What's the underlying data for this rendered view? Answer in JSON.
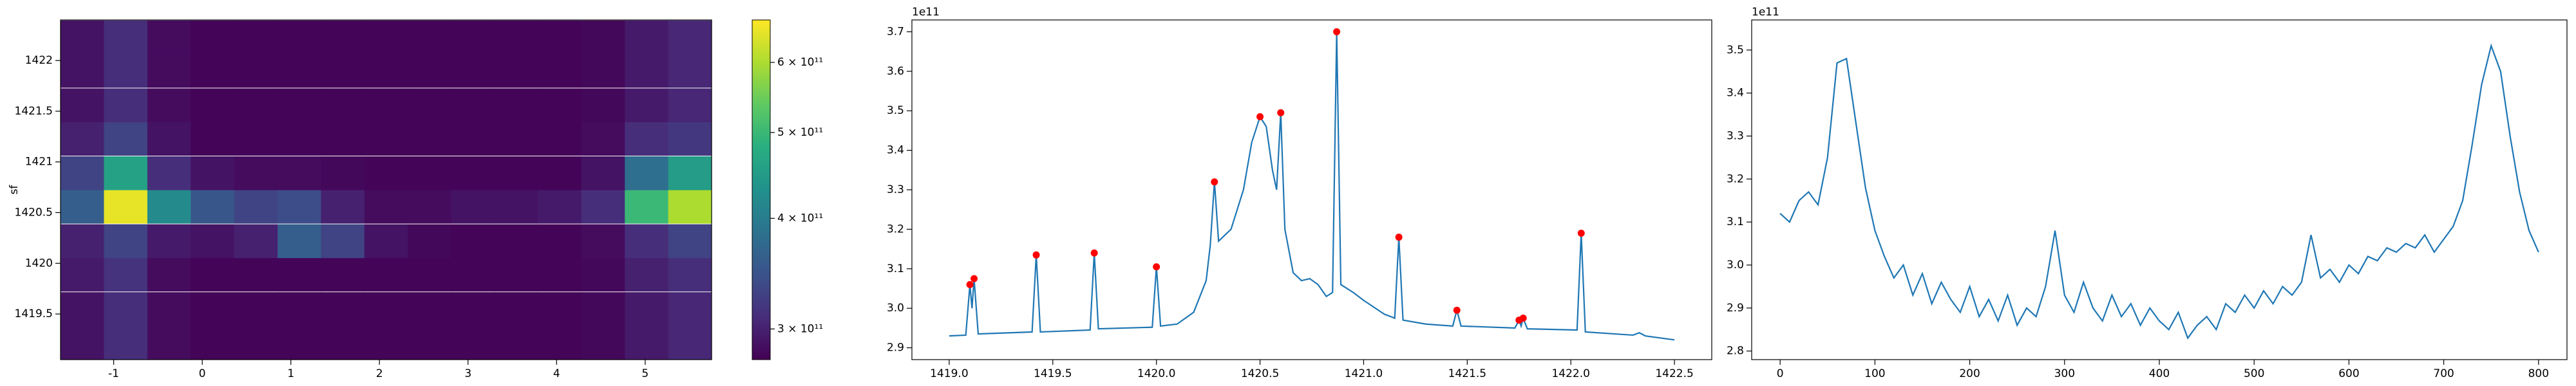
{
  "chart_data": [
    {
      "type": "heatmap",
      "ylabel": "sf",
      "x": [
        -1.355,
        -0.865,
        -0.375,
        0.115,
        0.605,
        1.095,
        1.585,
        2.075,
        2.565,
        3.055,
        3.545,
        4.035,
        4.525,
        5.015,
        5.505
      ],
      "y": [
        1419.22,
        1419.55,
        1419.89,
        1420.22,
        1420.56,
        1420.89,
        1421.23,
        1421.56,
        1421.9,
        1422.23
      ],
      "z": [
        [
          290000000000.0,
          310000000000.0,
          285000000000.0,
          280000000000.0,
          280000000000.0,
          280000000000.0,
          280000000000.0,
          280000000000.0,
          280000000000.0,
          280000000000.0,
          280000000000.0,
          280000000000.0,
          282000000000.0,
          295000000000.0,
          305000000000.0
        ],
        [
          290000000000.0,
          310000000000.0,
          285000000000.0,
          280000000000.0,
          280000000000.0,
          280000000000.0,
          280000000000.0,
          280000000000.0,
          280000000000.0,
          280000000000.0,
          280000000000.0,
          280000000000.0,
          282000000000.0,
          295000000000.0,
          305000000000.0
        ],
        [
          295000000000.0,
          315000000000.0,
          285000000000.0,
          280000000000.0,
          280000000000.0,
          280000000000.0,
          280000000000.0,
          280000000000.0,
          280000000000.0,
          280000000000.0,
          280000000000.0,
          280000000000.0,
          282000000000.0,
          300000000000.0,
          310000000000.0
        ],
        [
          300000000000.0,
          330000000000.0,
          295000000000.0,
          290000000000.0,
          300000000000.0,
          360000000000.0,
          330000000000.0,
          290000000000.0,
          282000000000.0,
          280000000000.0,
          280000000000.0,
          280000000000.0,
          285000000000.0,
          310000000000.0,
          330000000000.0
        ],
        [
          360000000000.0,
          650000000000.0,
          420000000000.0,
          350000000000.0,
          330000000000.0,
          340000000000.0,
          300000000000.0,
          285000000000.0,
          285000000000.0,
          290000000000.0,
          290000000000.0,
          295000000000.0,
          310000000000.0,
          500000000000.0,
          600000000000.0
        ],
        [
          330000000000.0,
          460000000000.0,
          310000000000.0,
          290000000000.0,
          285000000000.0,
          285000000000.0,
          282000000000.0,
          280000000000.0,
          280000000000.0,
          280000000000.0,
          280000000000.0,
          280000000000.0,
          290000000000.0,
          380000000000.0,
          450000000000.0
        ],
        [
          300000000000.0,
          330000000000.0,
          290000000000.0,
          280000000000.0,
          280000000000.0,
          280000000000.0,
          280000000000.0,
          280000000000.0,
          280000000000.0,
          280000000000.0,
          280000000000.0,
          280000000000.0,
          285000000000.0,
          310000000000.0,
          320000000000.0
        ],
        [
          290000000000.0,
          310000000000.0,
          285000000000.0,
          280000000000.0,
          280000000000.0,
          280000000000.0,
          280000000000.0,
          280000000000.0,
          280000000000.0,
          280000000000.0,
          280000000000.0,
          280000000000.0,
          282000000000.0,
          295000000000.0,
          305000000000.0
        ],
        [
          290000000000.0,
          310000000000.0,
          285000000000.0,
          280000000000.0,
          280000000000.0,
          280000000000.0,
          280000000000.0,
          280000000000.0,
          280000000000.0,
          280000000000.0,
          280000000000.0,
          280000000000.0,
          282000000000.0,
          295000000000.0,
          305000000000.0
        ],
        [
          290000000000.0,
          310000000000.0,
          285000000000.0,
          280000000000.0,
          280000000000.0,
          280000000000.0,
          280000000000.0,
          280000000000.0,
          280000000000.0,
          280000000000.0,
          280000000000.0,
          280000000000.0,
          282000000000.0,
          295000000000.0,
          305000000000.0
        ]
      ],
      "xlim": [
        -1.6,
        5.75
      ],
      "xticks": [
        -1,
        0,
        1,
        2,
        3,
        4,
        5
      ],
      "ylim": [
        1419.05,
        1422.4
      ],
      "yticks": [
        1419.5,
        1420.0,
        1420.5,
        1421.0,
        1421.5,
        1422.0
      ],
      "colormap": "viridis",
      "colorbar": {
        "log": true,
        "lim": [
          277000000000.0,
          670000000000.0
        ],
        "ticks": [
          {
            "value": 300000000000.0,
            "label": "3 × 10¹¹"
          },
          {
            "value": 400000000000.0,
            "label": "4 × 10¹¹"
          },
          {
            "value": 500000000000.0,
            "label": "5 × 10¹¹"
          },
          {
            "value": 600000000000.0,
            "label": "6 × 10¹¹"
          }
        ]
      }
    },
    {
      "type": "line",
      "offset_text": "1e11",
      "series": [
        {
          "color": "#1f77b4",
          "x": [
            1419.0,
            1419.08,
            1419.1,
            1419.11,
            1419.12,
            1419.14,
            1419.4,
            1419.42,
            1419.44,
            1419.68,
            1419.7,
            1419.72,
            1419.98,
            1420.0,
            1420.02,
            1420.1,
            1420.18,
            1420.24,
            1420.26,
            1420.28,
            1420.3,
            1420.36,
            1420.42,
            1420.46,
            1420.5,
            1420.53,
            1420.56,
            1420.58,
            1420.6,
            1420.62,
            1420.66,
            1420.7,
            1420.74,
            1420.78,
            1420.82,
            1420.85,
            1420.87,
            1420.89,
            1420.95,
            1421.0,
            1421.1,
            1421.15,
            1421.17,
            1421.19,
            1421.3,
            1421.43,
            1421.45,
            1421.47,
            1421.73,
            1421.75,
            1421.76,
            1421.77,
            1421.79,
            1422.03,
            1422.05,
            1422.07,
            1422.3,
            1422.33,
            1422.36,
            1422.5
          ],
          "values": [
            2.93,
            2.932,
            3.06,
            3.0,
            3.075,
            2.935,
            2.94,
            3.135,
            2.94,
            2.945,
            3.14,
            2.948,
            2.952,
            3.105,
            2.955,
            2.96,
            2.99,
            3.07,
            3.16,
            3.32,
            3.17,
            3.2,
            3.3,
            3.42,
            3.485,
            3.46,
            3.35,
            3.3,
            3.495,
            3.2,
            3.09,
            3.07,
            3.075,
            3.06,
            3.03,
            3.04,
            3.7,
            3.06,
            3.04,
            3.02,
            2.985,
            2.975,
            3.18,
            2.97,
            2.96,
            2.955,
            2.995,
            2.955,
            2.95,
            2.97,
            2.955,
            2.975,
            2.948,
            2.945,
            3.19,
            2.94,
            2.932,
            2.938,
            2.93,
            2.92
          ]
        },
        {
          "type": "scatter",
          "color": "red",
          "x": [
            1419.1,
            1419.12,
            1419.42,
            1419.7,
            1420.0,
            1420.28,
            1420.5,
            1420.6,
            1420.87,
            1421.17,
            1421.45,
            1421.75,
            1421.77,
            1422.05
          ],
          "values": [
            3.06,
            3.075,
            3.135,
            3.14,
            3.105,
            3.32,
            3.485,
            3.495,
            3.7,
            3.18,
            2.995,
            2.97,
            2.975,
            3.19
          ]
        }
      ],
      "xlim": [
        1418.82,
        1422.68
      ],
      "xticks": [
        {
          "value": 1419,
          "label": "1419.0"
        },
        1419.5,
        {
          "value": 1420,
          "label": "1420.0"
        },
        1420.5,
        {
          "value": 1421,
          "label": "1421.0"
        },
        1421.5,
        {
          "value": 1422,
          "label": "1422.0"
        },
        1422.5
      ],
      "ylim": [
        2.87,
        3.73
      ],
      "yticks": [
        2.9,
        {
          "value": 3,
          "label": "3.0"
        },
        3.1,
        3.2,
        3.3,
        3.4,
        3.5,
        3.6,
        3.7
      ]
    },
    {
      "type": "line",
      "offset_text": "1e11",
      "series": [
        {
          "color": "#1f77b4",
          "x": [
            0,
            10,
            20,
            30,
            40,
            50,
            60,
            70,
            80,
            90,
            100,
            110,
            120,
            130,
            140,
            150,
            160,
            170,
            180,
            190,
            200,
            210,
            220,
            230,
            240,
            250,
            260,
            270,
            280,
            290,
            300,
            310,
            320,
            330,
            340,
            350,
            360,
            370,
            380,
            390,
            400,
            410,
            420,
            430,
            440,
            450,
            460,
            470,
            480,
            490,
            500,
            510,
            520,
            530,
            540,
            550,
            560,
            570,
            580,
            590,
            600,
            610,
            620,
            630,
            640,
            650,
            660,
            670,
            680,
            690,
            700,
            710,
            720,
            730,
            740,
            750,
            760,
            770,
            780,
            790,
            800
          ],
          "values": [
            3.12,
            3.1,
            3.15,
            3.17,
            3.14,
            3.25,
            3.47,
            3.48,
            3.33,
            3.18,
            3.08,
            3.02,
            2.97,
            3.0,
            2.93,
            2.98,
            2.91,
            2.96,
            2.92,
            2.89,
            2.95,
            2.88,
            2.92,
            2.87,
            2.93,
            2.86,
            2.9,
            2.88,
            2.95,
            3.08,
            2.93,
            2.89,
            2.96,
            2.9,
            2.87,
            2.93,
            2.88,
            2.91,
            2.86,
            2.9,
            2.87,
            2.85,
            2.89,
            2.83,
            2.86,
            2.88,
            2.85,
            2.91,
            2.89,
            2.93,
            2.9,
            2.94,
            2.91,
            2.95,
            2.93,
            2.96,
            3.07,
            2.97,
            2.99,
            2.96,
            3.0,
            2.98,
            3.02,
            3.01,
            3.04,
            3.03,
            3.05,
            3.04,
            3.07,
            3.03,
            3.06,
            3.09,
            3.15,
            3.28,
            3.42,
            3.51,
            3.45,
            3.3,
            3.17,
            3.08,
            3.03
          ]
        }
      ],
      "xlim": [
        -30,
        830
      ],
      "xticks": [
        0,
        100,
        200,
        300,
        400,
        500,
        600,
        700,
        800
      ],
      "ylim": [
        2.78,
        3.57
      ],
      "yticks": [
        2.8,
        2.9,
        {
          "value": 3,
          "label": "3.0"
        },
        3.1,
        3.2,
        3.3,
        3.4,
        3.5
      ]
    }
  ]
}
